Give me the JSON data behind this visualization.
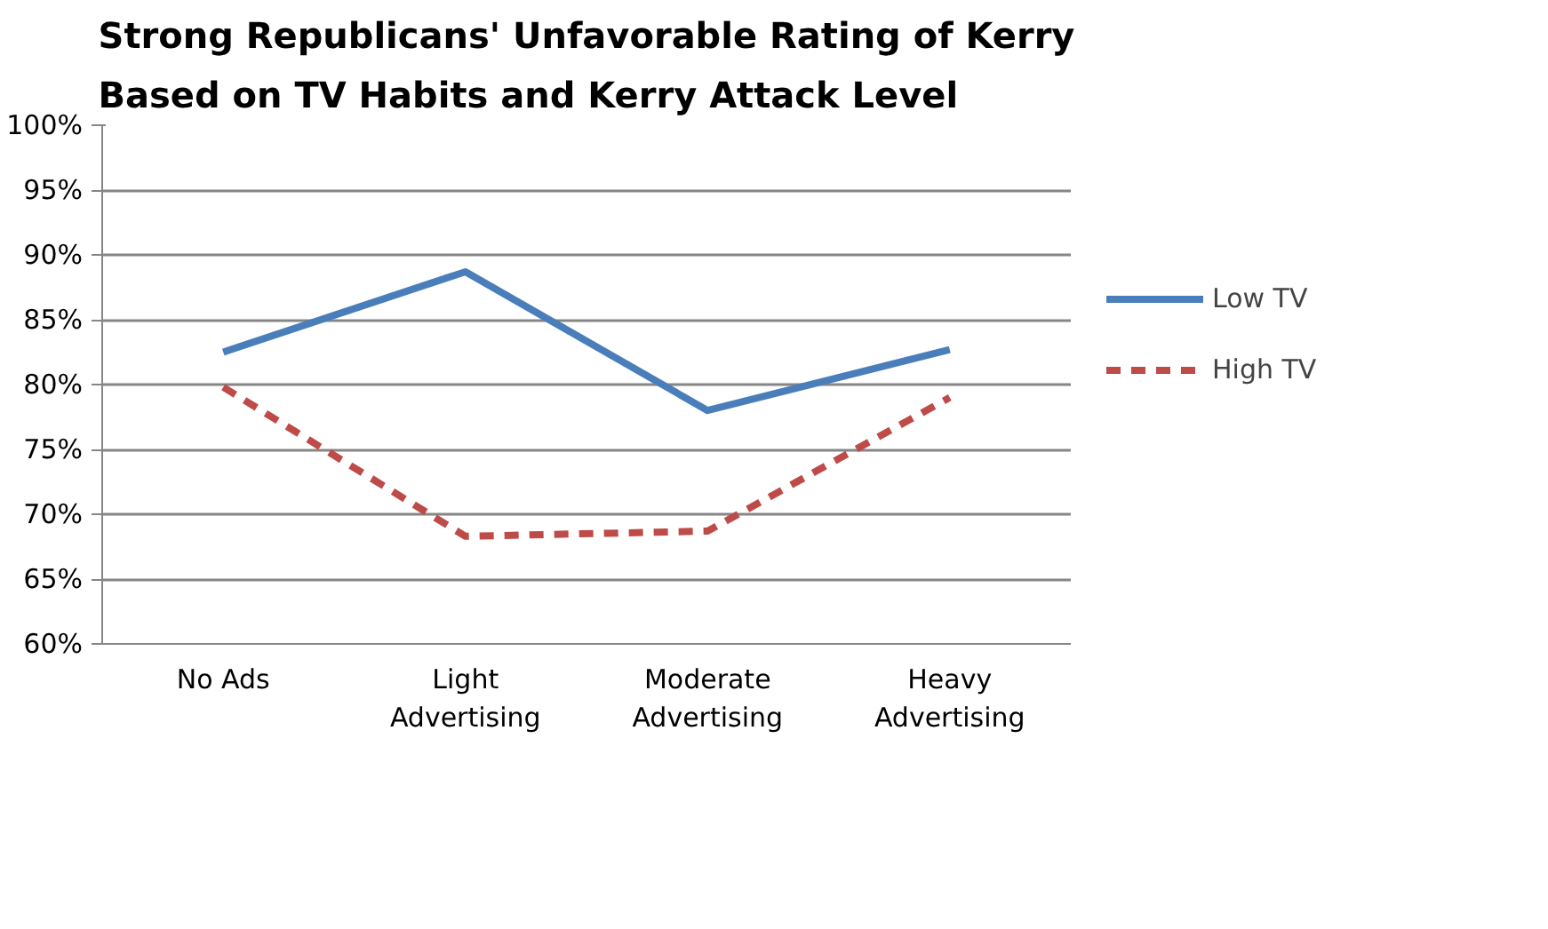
{
  "chart_data": {
    "type": "line",
    "title": "Strong Republicans' Unfavorable Rating of Kerry\nBased on TV Habits and Kerry Attack Level",
    "categories": [
      "No Ads",
      "Light\nAdvertising",
      "Moderate\nAdvertising",
      "Heavy\nAdvertising"
    ],
    "series": [
      {
        "name": "Low TV",
        "color": "#4a7ebb",
        "line_style": "solid",
        "values": [
          82.5,
          88.7,
          78.0,
          82.7
        ]
      },
      {
        "name": "High TV",
        "color": "#be4b48",
        "line_style": "dashed",
        "values": [
          79.8,
          68.3,
          68.7,
          79.0
        ]
      }
    ],
    "ylim": [
      60,
      100
    ],
    "yticks": [
      {
        "value": 60,
        "label": "60%"
      },
      {
        "value": 65,
        "label": "65%"
      },
      {
        "value": 70,
        "label": "70%"
      },
      {
        "value": 75,
        "label": "75%"
      },
      {
        "value": 80,
        "label": "80%"
      },
      {
        "value": 85,
        "label": "85%"
      },
      {
        "value": 90,
        "label": "90%"
      },
      {
        "value": 95,
        "label": "95%"
      },
      {
        "value": 100,
        "label": "100%"
      }
    ],
    "grid": "y",
    "legend": "right",
    "marker": "none"
  }
}
